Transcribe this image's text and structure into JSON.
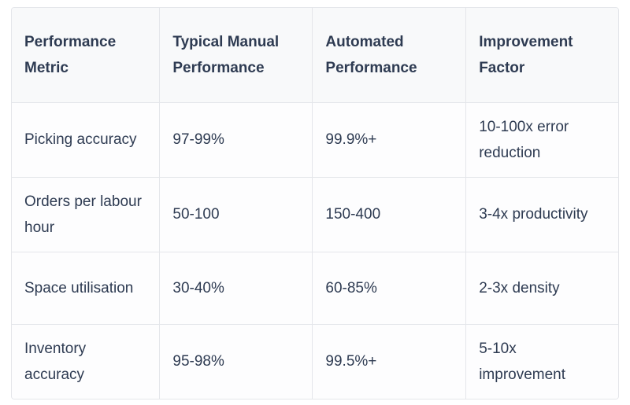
{
  "table": {
    "columns": [
      "Performance Metric",
      "Typical Manual Performance",
      "Automated Performance",
      "Improvement Factor"
    ],
    "rows": [
      {
        "cells": [
          "Picking accuracy",
          "97-99%",
          "99.9%+",
          "10-100x error reduction"
        ]
      },
      {
        "cells": [
          "Orders per labour hour",
          "50-100",
          "150-400",
          "3-4x productivity"
        ]
      },
      {
        "cells": [
          "Space utilisation",
          "30-40%",
          "60-85%",
          "2-3x density"
        ]
      },
      {
        "cells": [
          "Inventory accuracy",
          "95-98%",
          "99.5%+",
          "5-10x improvement"
        ]
      }
    ],
    "colors": {
      "header_background": "#f8f9fa",
      "body_background": "#fdfdfe",
      "border": "#e4e6ea",
      "text": "#2e3b52"
    }
  },
  "chart_data": {
    "type": "table",
    "title": "",
    "columns": [
      "Performance Metric",
      "Typical Manual Performance",
      "Automated Performance",
      "Improvement Factor"
    ],
    "rows": [
      [
        "Picking accuracy",
        "97-99%",
        "99.9%+",
        "10-100x error reduction"
      ],
      [
        "Orders per labour hour",
        "50-100",
        "150-400",
        "3-4x productivity"
      ],
      [
        "Space utilisation",
        "30-40%",
        "60-85%",
        "2-3x density"
      ],
      [
        "Inventory accuracy",
        "95-98%",
        "99.5%+",
        "5-10x improvement"
      ]
    ]
  }
}
